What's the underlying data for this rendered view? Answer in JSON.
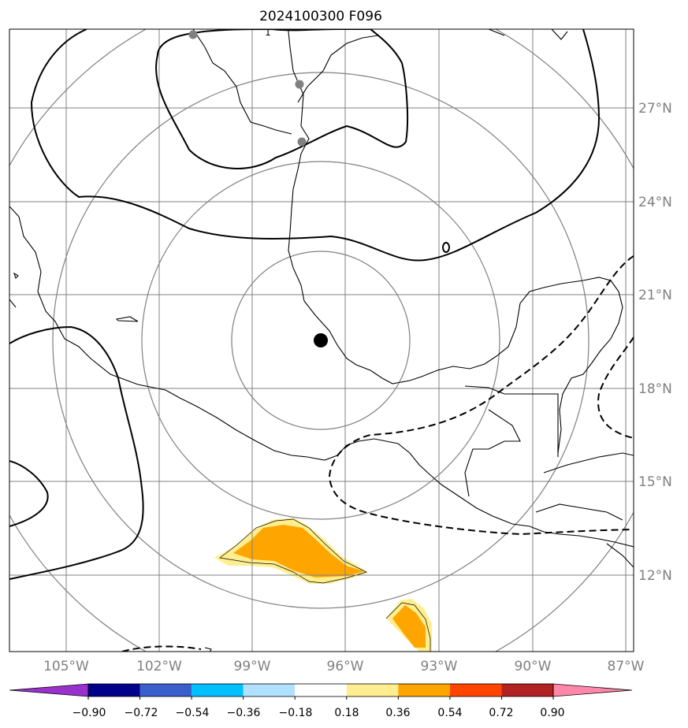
{
  "title": "2024100300 F096",
  "map": {
    "lon_labels": [
      "105°W",
      "102°W",
      "99°W",
      "96°W",
      "93°W",
      "90°W",
      "87°W"
    ],
    "lat_labels": [
      "27°N",
      "24°N",
      "21°N",
      "18°N",
      "15°N",
      "12°N"
    ],
    "contour_label": "1",
    "center_marker": "storm-center",
    "colors": {
      "gridline": "#808080",
      "range_ring": "#808080",
      "coastline": "#000000",
      "contour": "#000000",
      "station_dot": "#808080",
      "shade_light": "#ffee90",
      "shade_mid": "#ffa500"
    }
  },
  "colorbar": {
    "tick_labels": [
      "−0.90",
      "−0.72",
      "−0.54",
      "−0.36",
      "−0.18",
      "0.18",
      "0.36",
      "0.54",
      "0.72",
      "0.90"
    ],
    "bins": [
      {
        "color": "#9932cc"
      },
      {
        "color": "#00008b"
      },
      {
        "color": "#3a5fcd"
      },
      {
        "color": "#00bfff"
      },
      {
        "color": "#b0e2ff"
      },
      {
        "color": "#ffffff"
      },
      {
        "color": "#ffee90"
      },
      {
        "color": "#ffa500"
      },
      {
        "color": "#ff4500"
      },
      {
        "color": "#b22222"
      },
      {
        "color": "#ff88aa"
      }
    ]
  }
}
